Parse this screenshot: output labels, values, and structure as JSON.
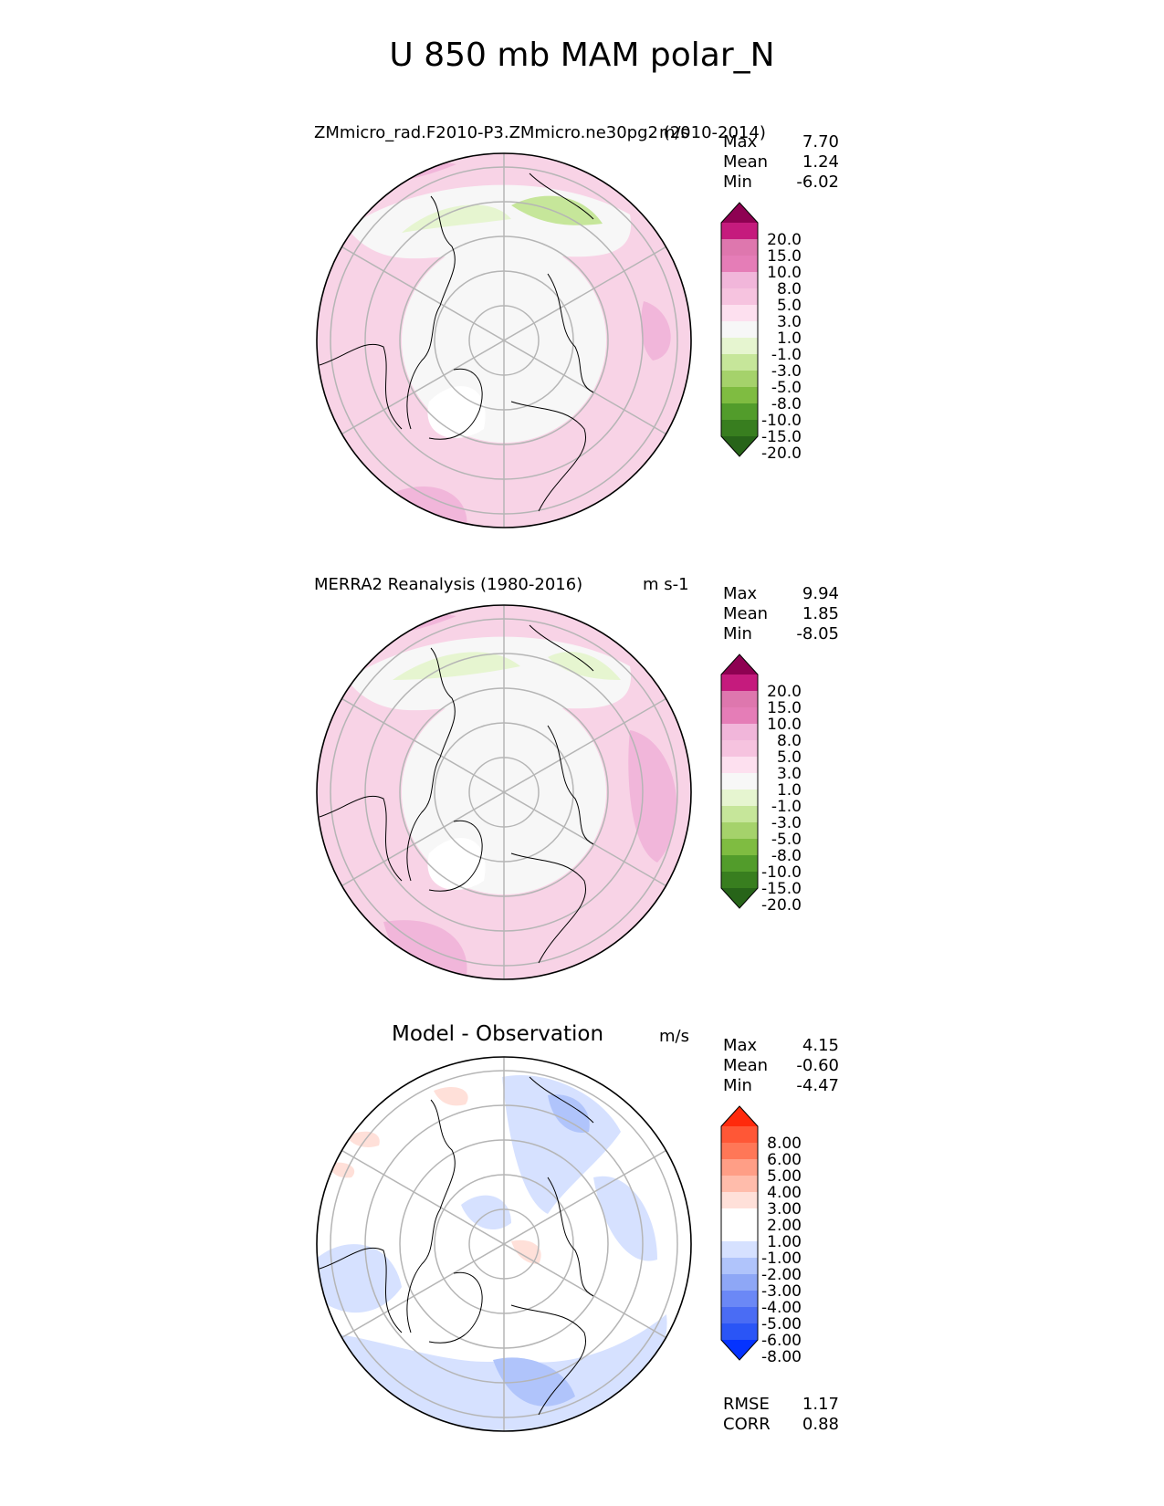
{
  "figure": {
    "title": "U 850 mb MAM polar_N"
  },
  "colors": {
    "field": [
      "#276419",
      "#387e1f",
      "#529c2b",
      "#7fbc41",
      "#a5d26b",
      "#c6e69a",
      "#e6f5d0",
      "#f7f7f7",
      "#fde0ef",
      "#f6c3df",
      "#f1b6da",
      "#e57db7",
      "#de77ae",
      "#c51b7d",
      "#8e0152"
    ],
    "diff": [
      "#0533ff",
      "#2a55f6",
      "#4a6cf4",
      "#6b88f6",
      "#8ea7f6",
      "#b0c4fb",
      "#d6e1ff",
      "#ffffff",
      "#ffe0d9",
      "#ffbcab",
      "#ff9e86",
      "#ff7757",
      "#ff5736",
      "#ff2a0c"
    ]
  },
  "chart_data": [
    {
      "type": "heatmap",
      "projection": "north polar stereographic",
      "title": "ZMmicro_rad.F2010-P3.ZMmicro.ne30pg2 (2010-2014)",
      "units": "m/s",
      "stats": {
        "max_label": "Max",
        "max": "7.70",
        "mean_label": "Mean",
        "mean": "1.24",
        "min_label": "Min",
        "min": "-6.02"
      },
      "colorbar_ticks": [
        "20.0",
        "15.0",
        "10.0",
        "8.0",
        "5.0",
        "3.0",
        "1.0",
        "-1.0",
        "-3.0",
        "-5.0",
        "-8.0",
        "-10.0",
        "-15.0",
        "-20.0"
      ]
    },
    {
      "type": "heatmap",
      "projection": "north polar stereographic",
      "title": "MERRA2 Reanalysis (1980-2016)",
      "units": "m s-1",
      "stats": {
        "max_label": "Max",
        "max": "9.94",
        "mean_label": "Mean",
        "mean": "1.85",
        "min_label": "Min",
        "min": "-8.05"
      },
      "colorbar_ticks": [
        "20.0",
        "15.0",
        "10.0",
        "8.0",
        "5.0",
        "3.0",
        "1.0",
        "-1.0",
        "-3.0",
        "-5.0",
        "-8.0",
        "-10.0",
        "-15.0",
        "-20.0"
      ]
    },
    {
      "type": "heatmap",
      "projection": "north polar stereographic",
      "title": "Model - Observation",
      "units": "m/s",
      "stats": {
        "max_label": "Max",
        "max": "4.15",
        "mean_label": "Mean",
        "mean": "-0.60",
        "min_label": "Min",
        "min": "-4.47"
      },
      "colorbar_ticks": [
        "8.00",
        "6.00",
        "5.00",
        "4.00",
        "3.00",
        "2.00",
        "1.00",
        "-1.00",
        "-2.00",
        "-3.00",
        "-4.00",
        "-5.00",
        "-6.00",
        "-8.00"
      ],
      "metrics": {
        "rmse_label": "RMSE",
        "rmse": "1.17",
        "corr_label": "CORR",
        "corr": "0.88"
      }
    }
  ]
}
